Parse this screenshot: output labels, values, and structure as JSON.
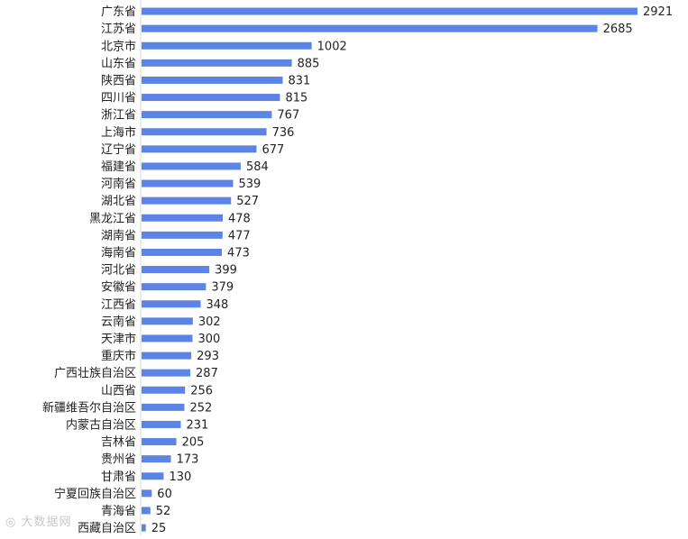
{
  "chart_data": {
    "type": "bar",
    "orientation": "horizontal",
    "categories": [
      "广东省",
      "江苏省",
      "北京市",
      "山东省",
      "陕西省",
      "四川省",
      "浙江省",
      "上海市",
      "辽宁省",
      "福建省",
      "河南省",
      "湖北省",
      "黑龙江省",
      "湖南省",
      "海南省",
      "河北省",
      "安徽省",
      "江西省",
      "云南省",
      "天津市",
      "重庆市",
      "广西壮族自治区",
      "山西省",
      "新疆维吾尔自治区",
      "内蒙古自治区",
      "吉林省",
      "贵州省",
      "甘肃省",
      "宁夏回族自治区",
      "青海省",
      "西藏自治区"
    ],
    "values": [
      2921,
      2685,
      1002,
      885,
      831,
      815,
      767,
      736,
      677,
      584,
      539,
      527,
      478,
      477,
      473,
      399,
      379,
      348,
      302,
      300,
      293,
      287,
      256,
      252,
      231,
      205,
      173,
      130,
      60,
      52,
      25
    ],
    "xlim": [
      0,
      2921
    ],
    "bar_color": "#5b84e6",
    "grid": false,
    "legend": "none"
  },
  "watermark": {
    "text": "大数据网"
  }
}
